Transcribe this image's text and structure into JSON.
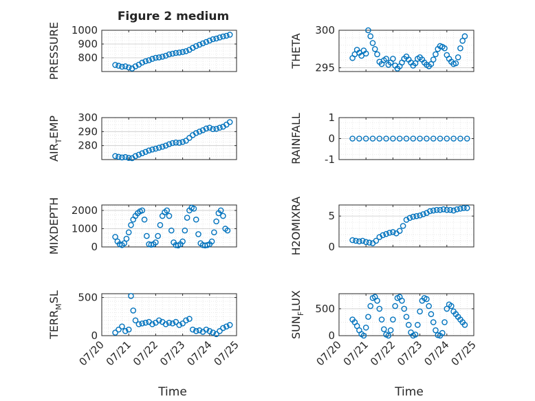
{
  "figure": {
    "title": "Figure 2 medium",
    "xlabel": "Time",
    "x_tick_labels": [
      "07/20",
      "07/21",
      "07/22",
      "07/23",
      "07/24",
      "07/25"
    ]
  },
  "colors": {
    "marker": "#0072BD",
    "grid": "#d9d9d9",
    "axis": "#262626"
  },
  "chart_data": [
    {
      "type": "scatter",
      "title": "Figure 2 medium",
      "ylabel": "PRESSURE",
      "ylabel_parts": [
        {
          "t": "PRESSURE",
          "s": "n"
        }
      ],
      "xlim": [
        "07/20",
        "07/25"
      ],
      "ylim": [
        700,
        1000
      ],
      "yticks": [
        800,
        900,
        1000
      ],
      "grid": true,
      "x_ticklabels_visible": false,
      "series": [
        {
          "x": [
            "07/20 12:00",
            "07/20 15:00",
            "07/20 18:00",
            "07/20 21:00",
            "07/21 00:00",
            "07/21 03:00",
            "07/21 06:00",
            "07/21 09:00",
            "07/21 12:00",
            "07/21 15:00",
            "07/21 18:00",
            "07/21 21:00",
            "07/22 00:00",
            "07/22 03:00",
            "07/22 06:00",
            "07/22 09:00",
            "07/22 12:00",
            "07/22 15:00",
            "07/22 18:00",
            "07/22 21:00",
            "07/23 00:00",
            "07/23 03:00",
            "07/23 06:00",
            "07/23 09:00",
            "07/23 12:00",
            "07/23 15:00",
            "07/23 18:00",
            "07/23 21:00",
            "07/24 00:00",
            "07/24 03:00",
            "07/24 06:00",
            "07/24 09:00",
            "07/24 12:00",
            "07/24 15:00",
            "07/24 18:00"
          ],
          "y": [
            748,
            742,
            735,
            738,
            730,
            722,
            738,
            750,
            765,
            775,
            782,
            792,
            800,
            803,
            808,
            815,
            825,
            830,
            835,
            838,
            842,
            848,
            858,
            872,
            885,
            895,
            905,
            915,
            925,
            935,
            940,
            948,
            955,
            960,
            968
          ]
        }
      ]
    },
    {
      "type": "scatter",
      "ylabel": "THETA",
      "ylabel_parts": [
        {
          "t": "THETA",
          "s": "n"
        }
      ],
      "xlim": [
        "07/20",
        "07/25"
      ],
      "ylim": [
        294.5,
        300
      ],
      "yticks": [
        295,
        300
      ],
      "grid": true,
      "x_ticklabels_visible": false,
      "series": [
        {
          "x": [
            "07/20 12:00",
            "07/20 14:00",
            "07/20 16:00",
            "07/20 18:00",
            "07/20 20:00",
            "07/20 22:00",
            "07/21 00:00",
            "07/21 02:00",
            "07/21 04:00",
            "07/21 06:00",
            "07/21 08:00",
            "07/21 10:00",
            "07/21 12:00",
            "07/21 14:00",
            "07/21 16:00",
            "07/21 18:00",
            "07/21 20:00",
            "07/21 22:00",
            "07/22 00:00",
            "07/22 02:00",
            "07/22 04:00",
            "07/22 06:00",
            "07/22 08:00",
            "07/22 10:00",
            "07/22 12:00",
            "07/22 14:00",
            "07/22 16:00",
            "07/22 18:00",
            "07/22 20:00",
            "07/22 22:00",
            "07/23 00:00",
            "07/23 02:00",
            "07/23 04:00",
            "07/23 06:00",
            "07/23 08:00",
            "07/23 10:00",
            "07/23 12:00",
            "07/23 14:00",
            "07/23 16:00",
            "07/23 18:00",
            "07/23 20:00",
            "07/23 22:00",
            "07/24 00:00",
            "07/24 02:00",
            "07/24 04:00",
            "07/24 06:00",
            "07/24 08:00",
            "07/24 10:00",
            "07/24 12:00",
            "07/24 14:00",
            "07/24 16:00"
          ],
          "y": [
            296.3,
            296.8,
            297.4,
            297.0,
            296.6,
            297.3,
            296.9,
            300.0,
            299.2,
            298.3,
            297.5,
            296.8,
            295.8,
            295.5,
            296.0,
            296.2,
            295.4,
            295.7,
            296.2,
            295.3,
            294.9,
            295.2,
            295.7,
            296.2,
            296.5,
            296.1,
            295.7,
            295.3,
            295.6,
            296.2,
            296.4,
            296.1,
            295.7,
            295.4,
            295.2,
            295.5,
            296.1,
            296.8,
            297.5,
            297.9,
            297.8,
            297.6,
            296.7,
            296.2,
            295.8,
            295.5,
            295.6,
            296.4,
            297.6,
            298.6,
            299.2
          ]
        }
      ]
    },
    {
      "type": "scatter",
      "ylabel": "AIR_TEMP",
      "ylabel_parts": [
        {
          "t": "AIR",
          "s": "n"
        },
        {
          "t": "T",
          "s": "sub"
        },
        {
          "t": "EMP",
          "s": "n"
        }
      ],
      "xlim": [
        "07/20",
        "07/25"
      ],
      "ylim": [
        270,
        300
      ],
      "yticks": [
        280,
        290,
        300
      ],
      "grid": true,
      "x_ticklabels_visible": false,
      "series": [
        {
          "x": [
            "07/20 12:00",
            "07/20 15:00",
            "07/20 18:00",
            "07/20 21:00",
            "07/21 00:00",
            "07/21 03:00",
            "07/21 06:00",
            "07/21 09:00",
            "07/21 12:00",
            "07/21 15:00",
            "07/21 18:00",
            "07/21 21:00",
            "07/22 00:00",
            "07/22 03:00",
            "07/22 06:00",
            "07/22 09:00",
            "07/22 12:00",
            "07/22 15:00",
            "07/22 18:00",
            "07/22 21:00",
            "07/23 00:00",
            "07/23 03:00",
            "07/23 06:00",
            "07/23 09:00",
            "07/23 12:00",
            "07/23 15:00",
            "07/23 18:00",
            "07/23 21:00",
            "07/24 00:00",
            "07/24 03:00",
            "07/24 06:00",
            "07/24 09:00",
            "07/24 12:00",
            "07/24 15:00",
            "07/24 18:00"
          ],
          "y": [
            272.5,
            272.0,
            271.5,
            271.8,
            271.2,
            271.0,
            272.5,
            273.5,
            274.5,
            275.5,
            276.5,
            277.2,
            277.8,
            278.5,
            279.2,
            280.0,
            281.0,
            281.8,
            282.2,
            282.0,
            282.6,
            283.5,
            285.5,
            287.5,
            289.0,
            290.0,
            291.0,
            292.2,
            292.8,
            291.8,
            292.0,
            292.8,
            293.5,
            295.0,
            296.8
          ]
        }
      ]
    },
    {
      "type": "scatter",
      "ylabel": "RAINFALL",
      "ylabel_parts": [
        {
          "t": "RAINFALL",
          "s": "n"
        }
      ],
      "xlim": [
        "07/20",
        "07/25"
      ],
      "ylim": [
        -1,
        1
      ],
      "yticks": [
        -1,
        0,
        1
      ],
      "grid": true,
      "x_ticklabels_visible": false,
      "series": [
        {
          "x": [
            "07/20 12:00",
            "07/20 18:00",
            "07/21 00:00",
            "07/21 06:00",
            "07/21 12:00",
            "07/21 18:00",
            "07/22 00:00",
            "07/22 06:00",
            "07/22 12:00",
            "07/22 18:00",
            "07/23 00:00",
            "07/23 06:00",
            "07/23 12:00",
            "07/23 18:00",
            "07/24 00:00",
            "07/24 06:00",
            "07/24 12:00",
            "07/24 18:00"
          ],
          "y": [
            0,
            0,
            0,
            0,
            0,
            0,
            0,
            0,
            0,
            0,
            0,
            0,
            0,
            0,
            0,
            0,
            0,
            0
          ]
        }
      ]
    },
    {
      "type": "scatter",
      "ylabel": "MIXDEPTH",
      "ylabel_parts": [
        {
          "t": "MIXDEPTH",
          "s": "n"
        }
      ],
      "xlim": [
        "07/20",
        "07/25"
      ],
      "ylim": [
        0,
        2300
      ],
      "yticks": [
        0,
        1000,
        2000
      ],
      "grid": true,
      "x_ticklabels_visible": false,
      "series": [
        {
          "x": [
            "07/20 12:00",
            "07/20 14:00",
            "07/20 16:00",
            "07/20 18:00",
            "07/20 20:00",
            "07/20 22:00",
            "07/21 00:00",
            "07/21 02:00",
            "07/21 04:00",
            "07/21 06:00",
            "07/21 08:00",
            "07/21 10:00",
            "07/21 12:00",
            "07/21 14:00",
            "07/21 16:00",
            "07/21 18:00",
            "07/21 20:00",
            "07/21 22:00",
            "07/22 00:00",
            "07/22 02:00",
            "07/22 04:00",
            "07/22 06:00",
            "07/22 08:00",
            "07/22 10:00",
            "07/22 12:00",
            "07/22 14:00",
            "07/22 16:00",
            "07/22 18:00",
            "07/22 20:00",
            "07/22 22:00",
            "07/23 00:00",
            "07/23 02:00",
            "07/23 04:00",
            "07/23 06:00",
            "07/23 08:00",
            "07/23 10:00",
            "07/23 12:00",
            "07/23 14:00",
            "07/23 16:00",
            "07/23 18:00",
            "07/23 20:00",
            "07/23 22:00",
            "07/24 00:00",
            "07/24 02:00",
            "07/24 04:00",
            "07/24 06:00",
            "07/24 08:00",
            "07/24 10:00",
            "07/24 12:00",
            "07/24 14:00",
            "07/24 16:00"
          ],
          "y": [
            550,
            300,
            150,
            100,
            200,
            450,
            800,
            1200,
            1500,
            1700,
            1850,
            1950,
            2000,
            1500,
            600,
            150,
            120,
            150,
            250,
            600,
            1200,
            1700,
            1900,
            2000,
            1700,
            900,
            250,
            100,
            80,
            150,
            300,
            900,
            1600,
            2000,
            2150,
            2100,
            1500,
            700,
            200,
            100,
            80,
            100,
            150,
            300,
            800,
            1400,
            1850,
            2000,
            1700,
            1000,
            900
          ]
        }
      ]
    },
    {
      "type": "scatter",
      "ylabel": "H2OMIXRA",
      "ylabel_parts": [
        {
          "t": "H2OMIXRA",
          "s": "n"
        }
      ],
      "xlim": [
        "07/20",
        "07/25"
      ],
      "ylim": [
        0,
        6.8
      ],
      "yticks": [
        0,
        5
      ],
      "grid": true,
      "x_ticklabels_visible": false,
      "series": [
        {
          "x": [
            "07/20 12:00",
            "07/20 15:00",
            "07/20 18:00",
            "07/20 21:00",
            "07/21 00:00",
            "07/21 03:00",
            "07/21 06:00",
            "07/21 09:00",
            "07/21 12:00",
            "07/21 15:00",
            "07/21 18:00",
            "07/21 21:00",
            "07/22 00:00",
            "07/22 03:00",
            "07/22 06:00",
            "07/22 09:00",
            "07/22 12:00",
            "07/22 15:00",
            "07/22 18:00",
            "07/22 21:00",
            "07/23 00:00",
            "07/23 03:00",
            "07/23 06:00",
            "07/23 09:00",
            "07/23 12:00",
            "07/23 15:00",
            "07/23 18:00",
            "07/23 21:00",
            "07/24 00:00",
            "07/24 03:00",
            "07/24 06:00",
            "07/24 09:00",
            "07/24 12:00",
            "07/24 15:00",
            "07/24 18:00"
          ],
          "y": [
            1.1,
            1.0,
            0.9,
            1.0,
            0.8,
            0.7,
            0.6,
            1.0,
            1.6,
            1.9,
            2.1,
            2.3,
            2.4,
            2.2,
            2.6,
            3.4,
            4.4,
            4.7,
            4.9,
            5.0,
            5.1,
            5.3,
            5.5,
            5.8,
            5.9,
            6.0,
            6.0,
            6.1,
            6.0,
            6.0,
            5.9,
            6.1,
            6.2,
            6.3,
            6.3
          ]
        }
      ]
    },
    {
      "type": "scatter",
      "ylabel": "TERR_MSL",
      "ylabel_parts": [
        {
          "t": "TERR",
          "s": "n"
        },
        {
          "t": "M",
          "s": "sub"
        },
        {
          "t": "SL",
          "s": "n"
        }
      ],
      "xlim": [
        "07/20",
        "07/25"
      ],
      "ylim": [
        0,
        550
      ],
      "yticks": [
        0,
        500
      ],
      "grid": true,
      "x_ticklabels_visible": true,
      "series": [
        {
          "x": [
            "07/20 12:00",
            "07/20 15:00",
            "07/20 18:00",
            "07/20 21:00",
            "07/21 00:00",
            "07/21 02:00",
            "07/21 04:00",
            "07/21 06:00",
            "07/21 09:00",
            "07/21 12:00",
            "07/21 15:00",
            "07/21 18:00",
            "07/21 21:00",
            "07/22 00:00",
            "07/22 03:00",
            "07/22 06:00",
            "07/22 09:00",
            "07/22 12:00",
            "07/22 15:00",
            "07/22 18:00",
            "07/22 21:00",
            "07/23 00:00",
            "07/23 03:00",
            "07/23 06:00",
            "07/23 09:00",
            "07/23 12:00",
            "07/23 15:00",
            "07/23 18:00",
            "07/23 21:00",
            "07/24 00:00",
            "07/24 03:00",
            "07/24 06:00",
            "07/24 09:00",
            "07/24 12:00",
            "07/24 15:00",
            "07/24 18:00"
          ],
          "y": [
            40,
            80,
            120,
            60,
            80,
            520,
            330,
            200,
            150,
            160,
            170,
            180,
            150,
            170,
            200,
            180,
            150,
            170,
            160,
            180,
            140,
            160,
            200,
            220,
            80,
            60,
            70,
            50,
            80,
            60,
            40,
            20,
            60,
            100,
            120,
            140
          ]
        }
      ]
    },
    {
      "type": "scatter",
      "ylabel": "SUN_FLUX",
      "ylabel_parts": [
        {
          "t": "SUN",
          "s": "n"
        },
        {
          "t": "F",
          "s": "sub"
        },
        {
          "t": "LUX",
          "s": "n"
        }
      ],
      "xlim": [
        "07/20",
        "07/25"
      ],
      "ylim": [
        0,
        780
      ],
      "yticks": [
        0,
        500
      ],
      "grid": true,
      "x_ticklabels_visible": true,
      "series": [
        {
          "x": [
            "07/20 12:00",
            "07/20 14:00",
            "07/20 16:00",
            "07/20 18:00",
            "07/20 20:00",
            "07/20 22:00",
            "07/21 00:00",
            "07/21 02:00",
            "07/21 04:00",
            "07/21 06:00",
            "07/21 08:00",
            "07/21 10:00",
            "07/21 12:00",
            "07/21 14:00",
            "07/21 16:00",
            "07/21 18:00",
            "07/21 20:00",
            "07/21 22:00",
            "07/22 00:00",
            "07/22 02:00",
            "07/22 04:00",
            "07/22 06:00",
            "07/22 08:00",
            "07/22 10:00",
            "07/22 12:00",
            "07/22 14:00",
            "07/22 16:00",
            "07/22 18:00",
            "07/22 20:00",
            "07/22 22:00",
            "07/23 00:00",
            "07/23 02:00",
            "07/23 04:00",
            "07/23 06:00",
            "07/23 08:00",
            "07/23 10:00",
            "07/23 12:00",
            "07/23 14:00",
            "07/23 16:00",
            "07/23 18:00",
            "07/23 20:00",
            "07/23 22:00",
            "07/24 00:00",
            "07/24 02:00",
            "07/24 04:00",
            "07/24 06:00",
            "07/24 08:00",
            "07/24 10:00",
            "07/24 12:00",
            "07/24 14:00",
            "07/24 16:00"
          ],
          "y": [
            300,
            250,
            180,
            100,
            30,
            0,
            150,
            350,
            550,
            700,
            720,
            650,
            500,
            300,
            120,
            20,
            0,
            100,
            300,
            550,
            700,
            720,
            650,
            500,
            350,
            200,
            60,
            0,
            20,
            200,
            450,
            650,
            700,
            680,
            550,
            400,
            250,
            100,
            10,
            0,
            50,
            250,
            500,
            580,
            550,
            450,
            400,
            350,
            300,
            250,
            200
          ]
        }
      ]
    }
  ]
}
